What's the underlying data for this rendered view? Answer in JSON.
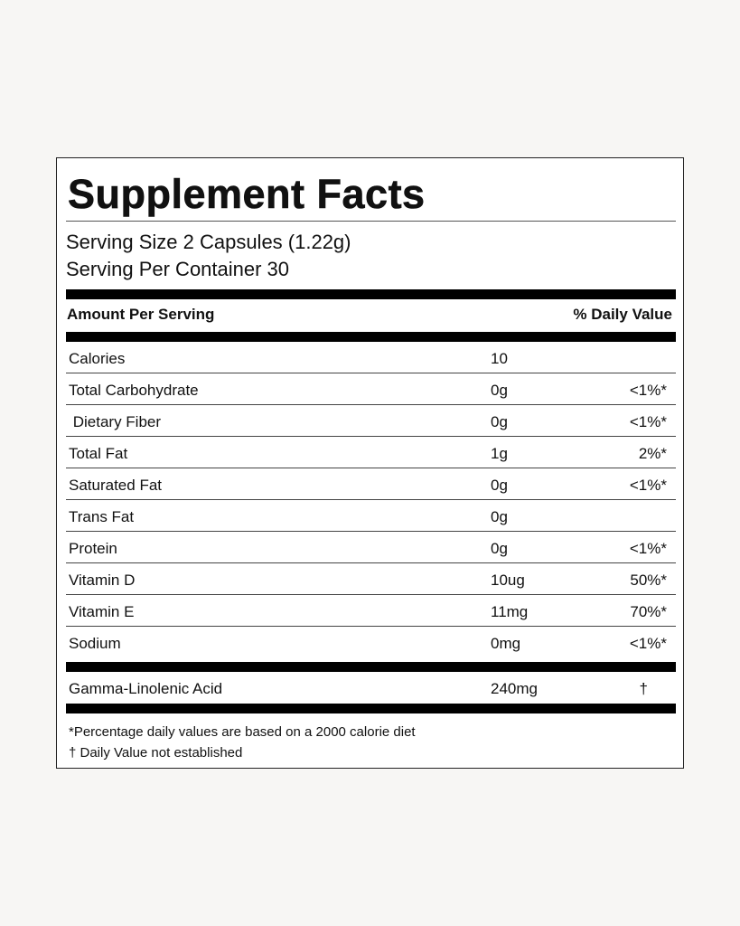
{
  "title": "Supplement Facts",
  "serving_size": "Serving Size 2 Capsules (1.22g)",
  "servings_per_container": "Serving Per Container 30",
  "header": {
    "amount": "Amount Per Serving",
    "daily_value": "% Daily Value"
  },
  "rows": [
    {
      "name": "Calories",
      "amount": "10",
      "dv": ""
    },
    {
      "name": "Total Carbohydrate",
      "amount": "0g",
      "dv": "<1%*"
    },
    {
      "name": " Dietary Fiber",
      "amount": "0g",
      "dv": "<1%*"
    },
    {
      "name": "Total Fat",
      "amount": "1g",
      "dv": "2%*"
    },
    {
      "name": "Saturated Fat",
      "amount": "0g",
      "dv": "<1%*"
    },
    {
      "name": "Trans Fat",
      "amount": "0g",
      "dv": ""
    },
    {
      "name": "Protein",
      "amount": "0g",
      "dv": "<1%*"
    },
    {
      "name": "Vitamin D",
      "amount": "10ug",
      "dv": "50%*"
    },
    {
      "name": "Vitamin E",
      "amount": "11mg",
      "dv": "70%*"
    },
    {
      "name": "Sodium",
      "amount": "0mg",
      "dv": "<1%*"
    }
  ],
  "special": {
    "name": "Gamma-Linolenic Acid",
    "amount": "240mg",
    "dv": "†"
  },
  "footnotes": [
    "*Percentage daily values are based on a 2000 calorie diet",
    "† Daily Value not established"
  ]
}
